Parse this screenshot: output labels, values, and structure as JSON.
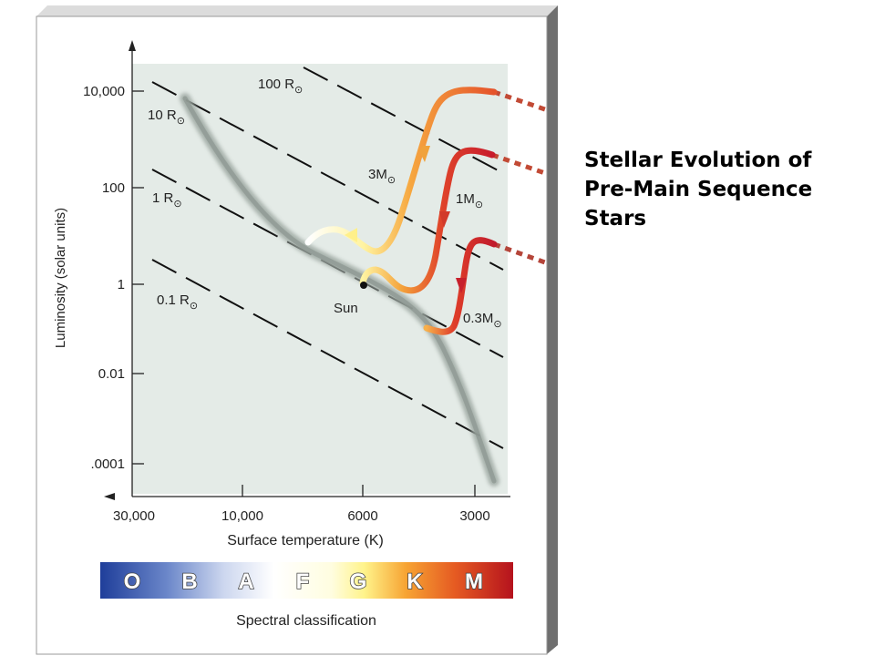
{
  "slide": {
    "title": "Stellar Evolution of\nPre-Main Sequence\nStars"
  },
  "diagram": {
    "y_axis_label": "Luminosity (solar units)",
    "x_axis_label": "Surface temperature (K)",
    "y_ticks": [
      "10,000",
      "100",
      "1",
      "0.01",
      ".0001"
    ],
    "x_ticks": [
      "30,000",
      "10,000",
      "6000",
      "3000"
    ],
    "radius_labels": [
      {
        "value": "100 R",
        "symbol": "⊙"
      },
      {
        "value": "10 R",
        "symbol": "⊙"
      },
      {
        "value": "1 R",
        "symbol": "⊙"
      },
      {
        "value": "0.1 R",
        "symbol": "⊙"
      }
    ],
    "track_labels": [
      {
        "value": "3M",
        "symbol": "⊙"
      },
      {
        "value": "1M",
        "symbol": "⊙"
      },
      {
        "value": "0.3M",
        "symbol": "⊙"
      }
    ],
    "sun_label": "Sun",
    "spectral_label": "Spectral classification",
    "spectral_classes": [
      "O",
      "B",
      "A",
      "F",
      "G",
      "K",
      "M"
    ]
  },
  "colors": {
    "plot_bg": "#e4ebe7",
    "frame": "#8f8f8f",
    "main_sequence": "#9ea9a3",
    "track_3m": "#f29a35",
    "track_1m": "#d9352a",
    "track_03m": "#c7202c"
  }
}
